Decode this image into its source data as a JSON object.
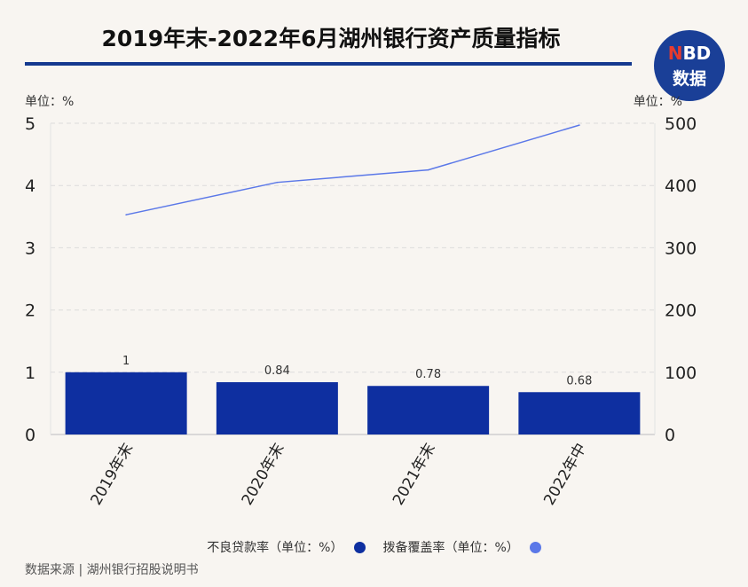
{
  "header": {
    "title": "2019年末-2022年6月湖州银行资产质量指标",
    "logo_top": "NBD",
    "logo_bottom": "数据"
  },
  "units": {
    "left": "单位：%",
    "right": "单位：%"
  },
  "chart_data": {
    "type": "bar",
    "categories": [
      "2019年末",
      "2020年末",
      "2021年末",
      "2022年中"
    ],
    "series": [
      {
        "name": "不良贷款率（单位：%）",
        "type": "bar",
        "axis": "left",
        "values": [
          1,
          0.84,
          0.78,
          0.68
        ],
        "labels": [
          "1",
          "0.84",
          "0.78",
          "0.68"
        ],
        "color": "#0e2fa0"
      },
      {
        "name": "拨备覆盖率（单位：%）",
        "type": "line",
        "axis": "right",
        "values": [
          353,
          405,
          425,
          497
        ],
        "color": "#5b78e8"
      }
    ],
    "y_left": {
      "ylim": [
        0,
        5
      ],
      "ticks": [
        "0",
        "1",
        "2",
        "3",
        "4",
        "5"
      ]
    },
    "y_right": {
      "ylim": [
        0,
        500
      ],
      "ticks": [
        "0",
        "100",
        "200",
        "300",
        "400",
        "500"
      ]
    },
    "grid": true,
    "legend": "bottom"
  },
  "source": "数据来源 | 湖州银行招股说明书"
}
